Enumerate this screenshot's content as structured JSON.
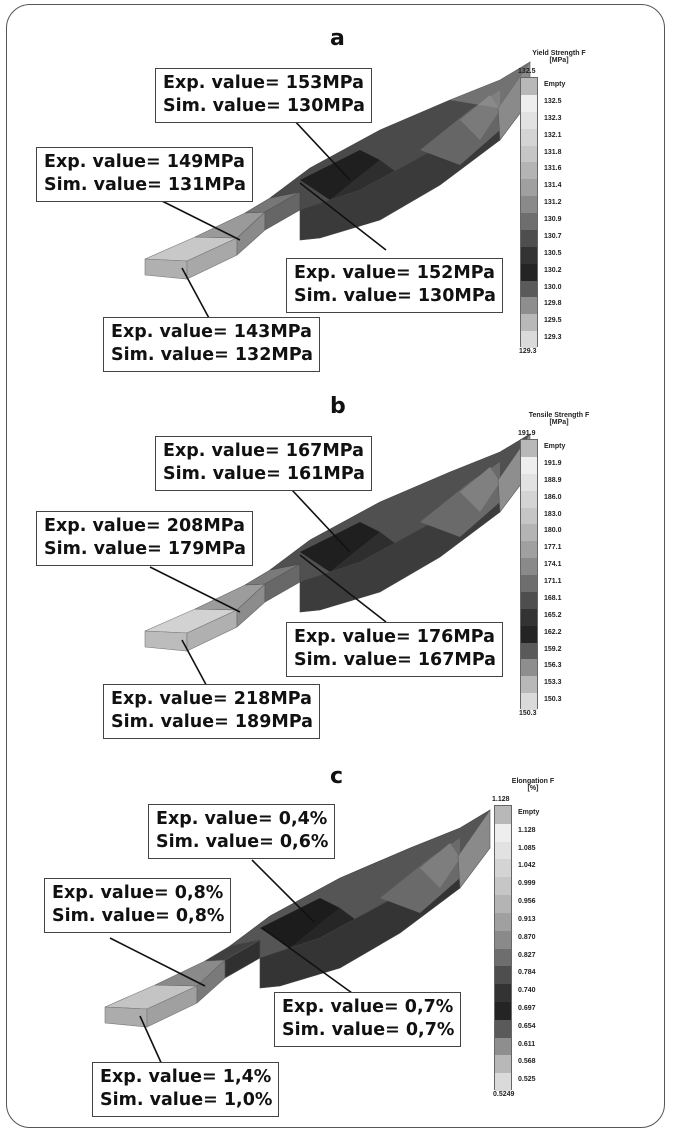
{
  "panels": [
    {
      "letter": "a",
      "legend": {
        "title_line1": "Yield Strength F",
        "title_line2": "[MPa]",
        "top_value": "132.5",
        "bottom_value": "129.3",
        "empty_label": "Empty",
        "labels": [
          "132.5",
          "132.3",
          "132.1",
          "131.8",
          "131.6",
          "131.4",
          "131.2",
          "130.9",
          "130.7",
          "130.5",
          "130.2",
          "130.0",
          "129.8",
          "129.5",
          "129.3"
        ]
      },
      "callouts": [
        {
          "exp": "Exp. value= 153MPa",
          "sim": "Sim. value= 130MPa"
        },
        {
          "exp": "Exp. value= 149MPa",
          "sim": "Sim. value= 131MPa"
        },
        {
          "exp": "Exp. value= 152MPa",
          "sim": "Sim. value= 130MPa"
        },
        {
          "exp": "Exp. value= 143MPa",
          "sim": "Sim. value= 132MPa"
        }
      ]
    },
    {
      "letter": "b",
      "legend": {
        "title_line1": "Tensile Strength F",
        "title_line2": "[MPa]",
        "top_value": "191.9",
        "bottom_value": "150.3",
        "empty_label": "Empty",
        "labels": [
          "191.9",
          "188.9",
          "186.0",
          "183.0",
          "180.0",
          "177.1",
          "174.1",
          "171.1",
          "168.1",
          "165.2",
          "162.2",
          "159.2",
          "156.3",
          "153.3",
          "150.3"
        ]
      },
      "callouts": [
        {
          "exp": "Exp. value= 167MPa",
          "sim": "Sim. value= 161MPa"
        },
        {
          "exp": "Exp. value= 208MPa",
          "sim": "Sim. value= 179MPa"
        },
        {
          "exp": "Exp. value= 176MPa",
          "sim": "Sim. value= 167MPa"
        },
        {
          "exp": "Exp. value= 218MPa",
          "sim": "Sim. value= 189MPa"
        }
      ]
    },
    {
      "letter": "c",
      "legend": {
        "title_line1": "Elongation F",
        "title_line2": "[%]",
        "top_value": "1.128",
        "bottom_value": "0.5249",
        "empty_label": "Empty",
        "labels": [
          "1.128",
          "1.085",
          "1.042",
          "0.999",
          "0.956",
          "0.913",
          "0.870",
          "0.827",
          "0.784",
          "0.740",
          "0.697",
          "0.654",
          "0.611",
          "0.568",
          "0.525"
        ]
      },
      "callouts": [
        {
          "exp": "Exp. value= 0,4%",
          "sim": "Sim. value= 0,6%"
        },
        {
          "exp": "Exp. value= 0,8%",
          "sim": "Sim. value= 0,8%"
        },
        {
          "exp": "Exp. value= 0,7%",
          "sim": "Sim. value= 0,7%"
        },
        {
          "exp": "Exp. value= 1,4%",
          "sim": "Sim. value= 1,0%"
        }
      ]
    }
  ],
  "legend_colors": [
    "#fbfbfb",
    "#eeeeee",
    "#e2e2e2",
    "#d4d4d4",
    "#c6c6c6",
    "#b4b4b4",
    "#a0a0a0",
    "#8a8a8a",
    "#6e6e6e",
    "#4e4e4e",
    "#333333",
    "#242424",
    "#5a5a5a",
    "#8e8e8e",
    "#b8b8b8",
    "#dadada"
  ]
}
